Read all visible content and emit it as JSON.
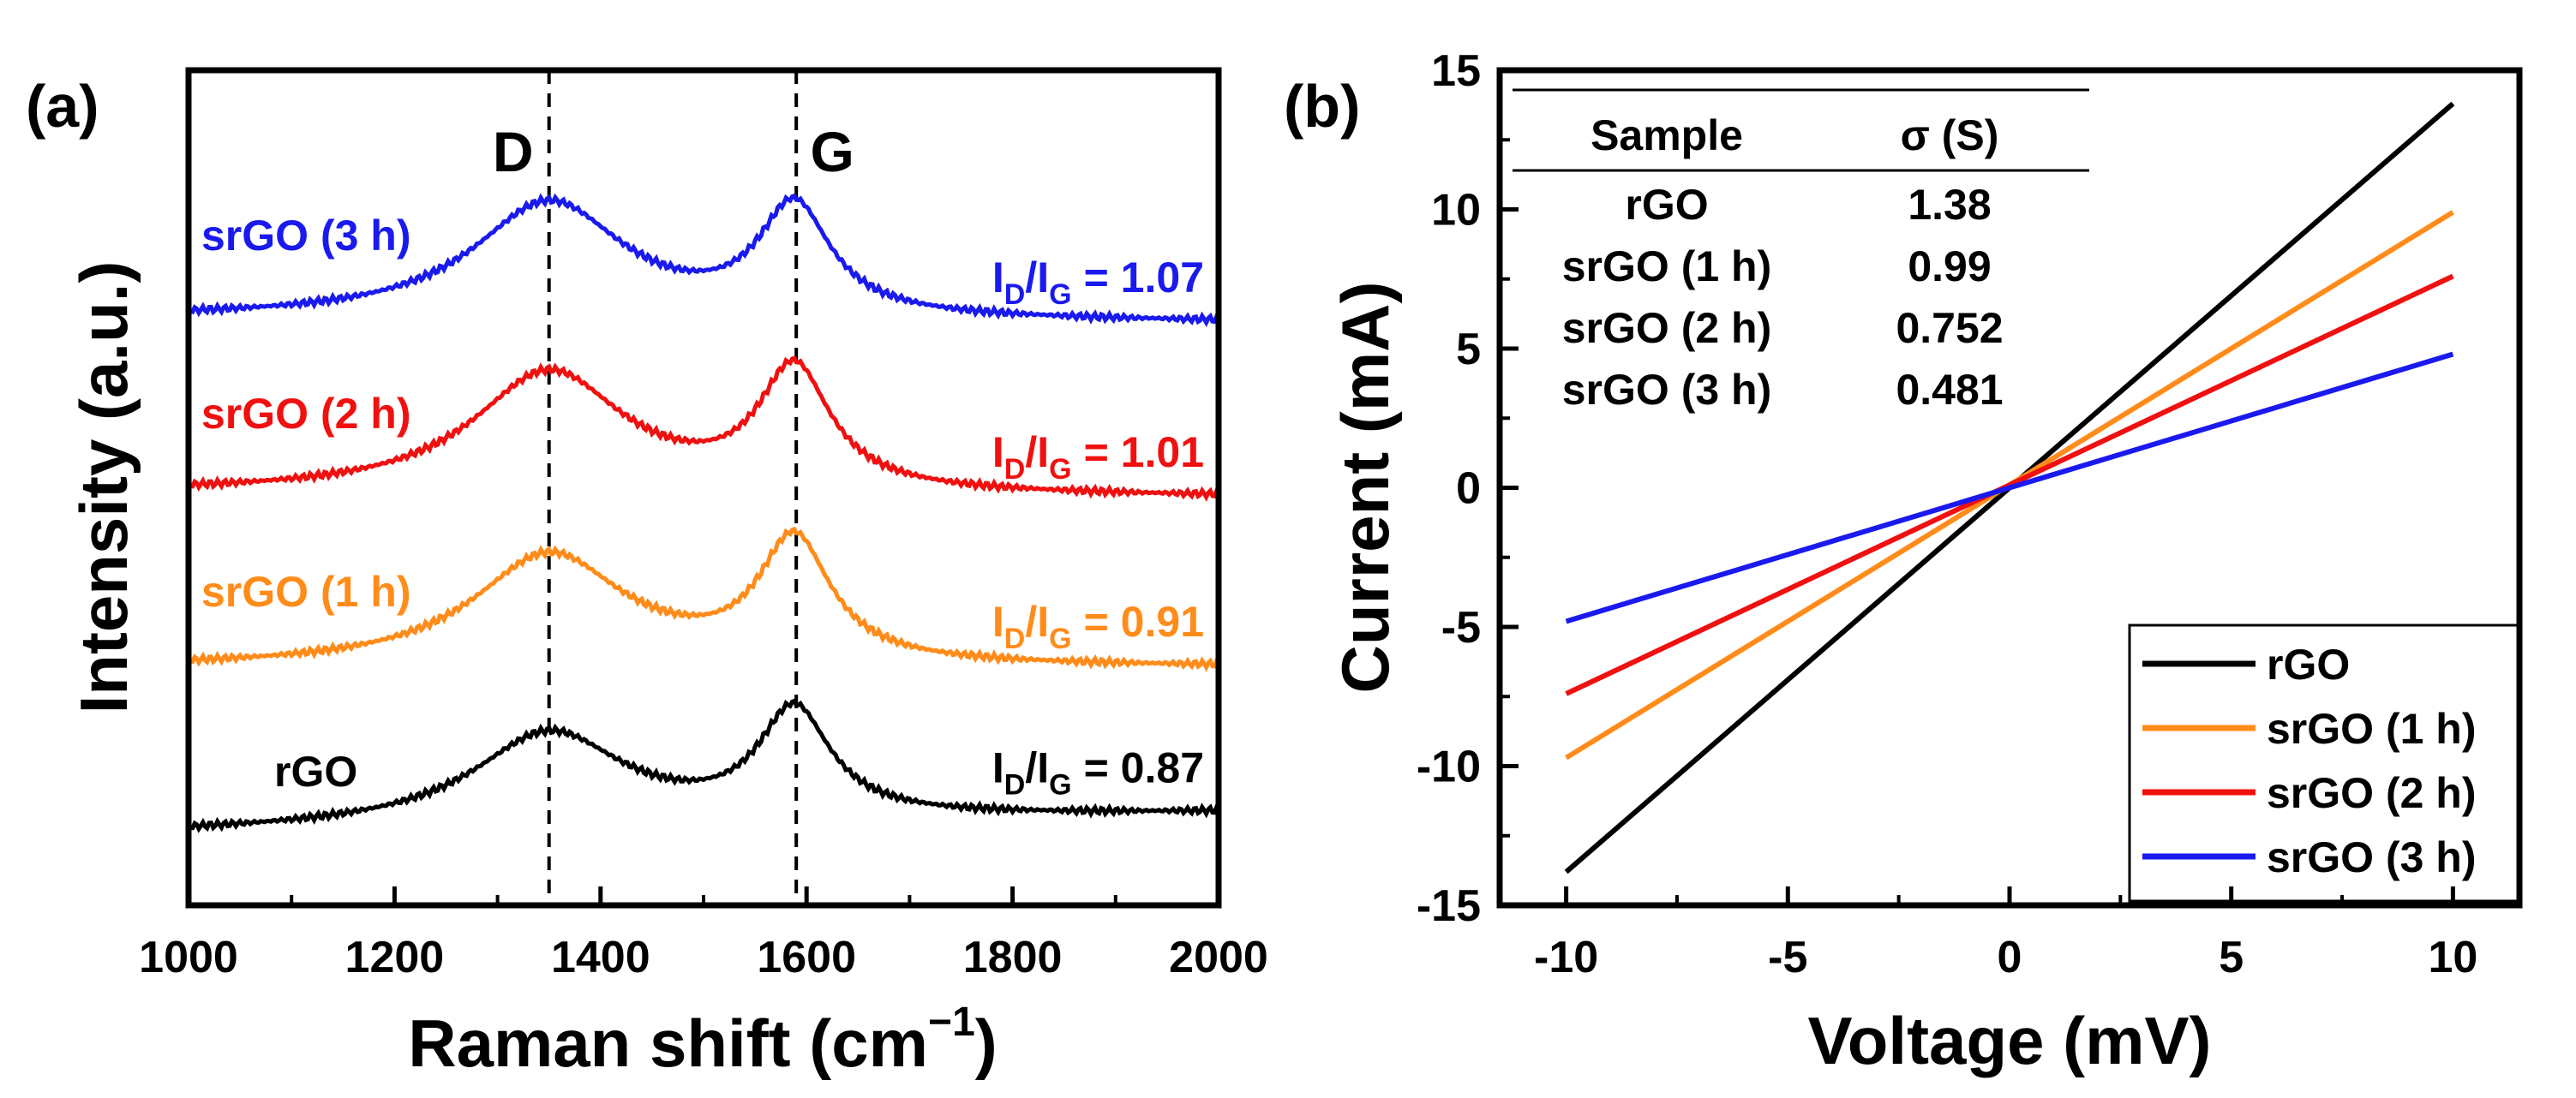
{
  "colors": {
    "rGO": "#000000",
    "srGO_1h": "#ff8c1a",
    "srGO_2h": "#f01010",
    "srGO_3h": "#1a1aee",
    "axis": "#000000"
  },
  "chart_data": [
    {
      "panel": "(a)",
      "type": "line",
      "xlabel": "Raman shift (cm",
      "xlabel_sup": "−1",
      "xlabel_close": ")",
      "ylabel": "Intensity (a.u.)",
      "xlim": [
        1000,
        2000
      ],
      "ylim": [
        0,
        8.6
      ],
      "xticks": [
        "1000",
        "1200",
        "1400",
        "1600",
        "1800",
        "2000"
      ],
      "ref_lines": [
        {
          "x": 1350,
          "label": "D"
        },
        {
          "x": 1590,
          "label": "G"
        }
      ],
      "ratio_text": {
        "I": "I",
        "D": "D",
        "slash": "/",
        "G": "G"
      },
      "series": [
        {
          "name": "srGO (3 h)",
          "color_key": "srGO_3h",
          "offset": 6.0,
          "base_start": 0.05,
          "base_end": 0.0,
          "d_peak": 1.2,
          "g_peak": 1.12,
          "valley": 0.48,
          "ratio": "= 1.07"
        },
        {
          "name": "srGO (2 h)",
          "color_key": "srGO_2h",
          "offset": 4.2,
          "base_start": 0.05,
          "base_end": 0.0,
          "d_peak": 1.25,
          "g_peak": 1.24,
          "valley": 0.55,
          "ratio": "= 1.01"
        },
        {
          "name": "srGO (1 h)",
          "color_key": "srGO_1h",
          "offset": 2.45,
          "base_start": 0.0,
          "base_end": 0.0,
          "d_peak": 1.15,
          "g_peak": 1.26,
          "valley": 0.55,
          "ratio": "= 0.91"
        },
        {
          "name": "rGO",
          "color_key": "rGO",
          "offset": 0.75,
          "base_start": 0.0,
          "base_end": 0.2,
          "d_peak": 0.95,
          "g_peak": 1.1,
          "valley": 0.4,
          "ratio": "= 0.87"
        }
      ]
    },
    {
      "panel": "(b)",
      "type": "line",
      "xlabel": "Voltage (mV)",
      "ylabel": "Current (mA)",
      "xlim": [
        -11.5,
        11.5
      ],
      "ylim": [
        -15,
        15
      ],
      "xticks": [
        -10,
        -5,
        0,
        5,
        10
      ],
      "yticks": [
        -15,
        -10,
        -5,
        0,
        5,
        10,
        15
      ],
      "series": [
        {
          "name": "rGO",
          "color_key": "rGO",
          "x": [
            -10,
            10
          ],
          "y": [
            -13.8,
            13.8
          ]
        },
        {
          "name": "srGO (1 h)",
          "color_key": "srGO_1h",
          "x": [
            -10,
            10
          ],
          "y": [
            -9.7,
            9.9
          ]
        },
        {
          "name": "srGO (2 h)",
          "color_key": "srGO_2h",
          "x": [
            -10,
            10
          ],
          "y": [
            -7.4,
            7.6
          ]
        },
        {
          "name": "srGO (3 h)",
          "color_key": "srGO_3h",
          "x": [
            -10,
            10
          ],
          "y": [
            -4.8,
            4.8
          ]
        }
      ],
      "legend_position": "bottom-right",
      "table": {
        "headers": [
          "Sample",
          "σ (S)"
        ],
        "rows": [
          [
            "rGO",
            "1.38"
          ],
          [
            "srGO (1 h)",
            "0.99"
          ],
          [
            "srGO (2 h)",
            "0.752"
          ],
          [
            "srGO (3 h)",
            "0.481"
          ]
        ]
      }
    }
  ]
}
